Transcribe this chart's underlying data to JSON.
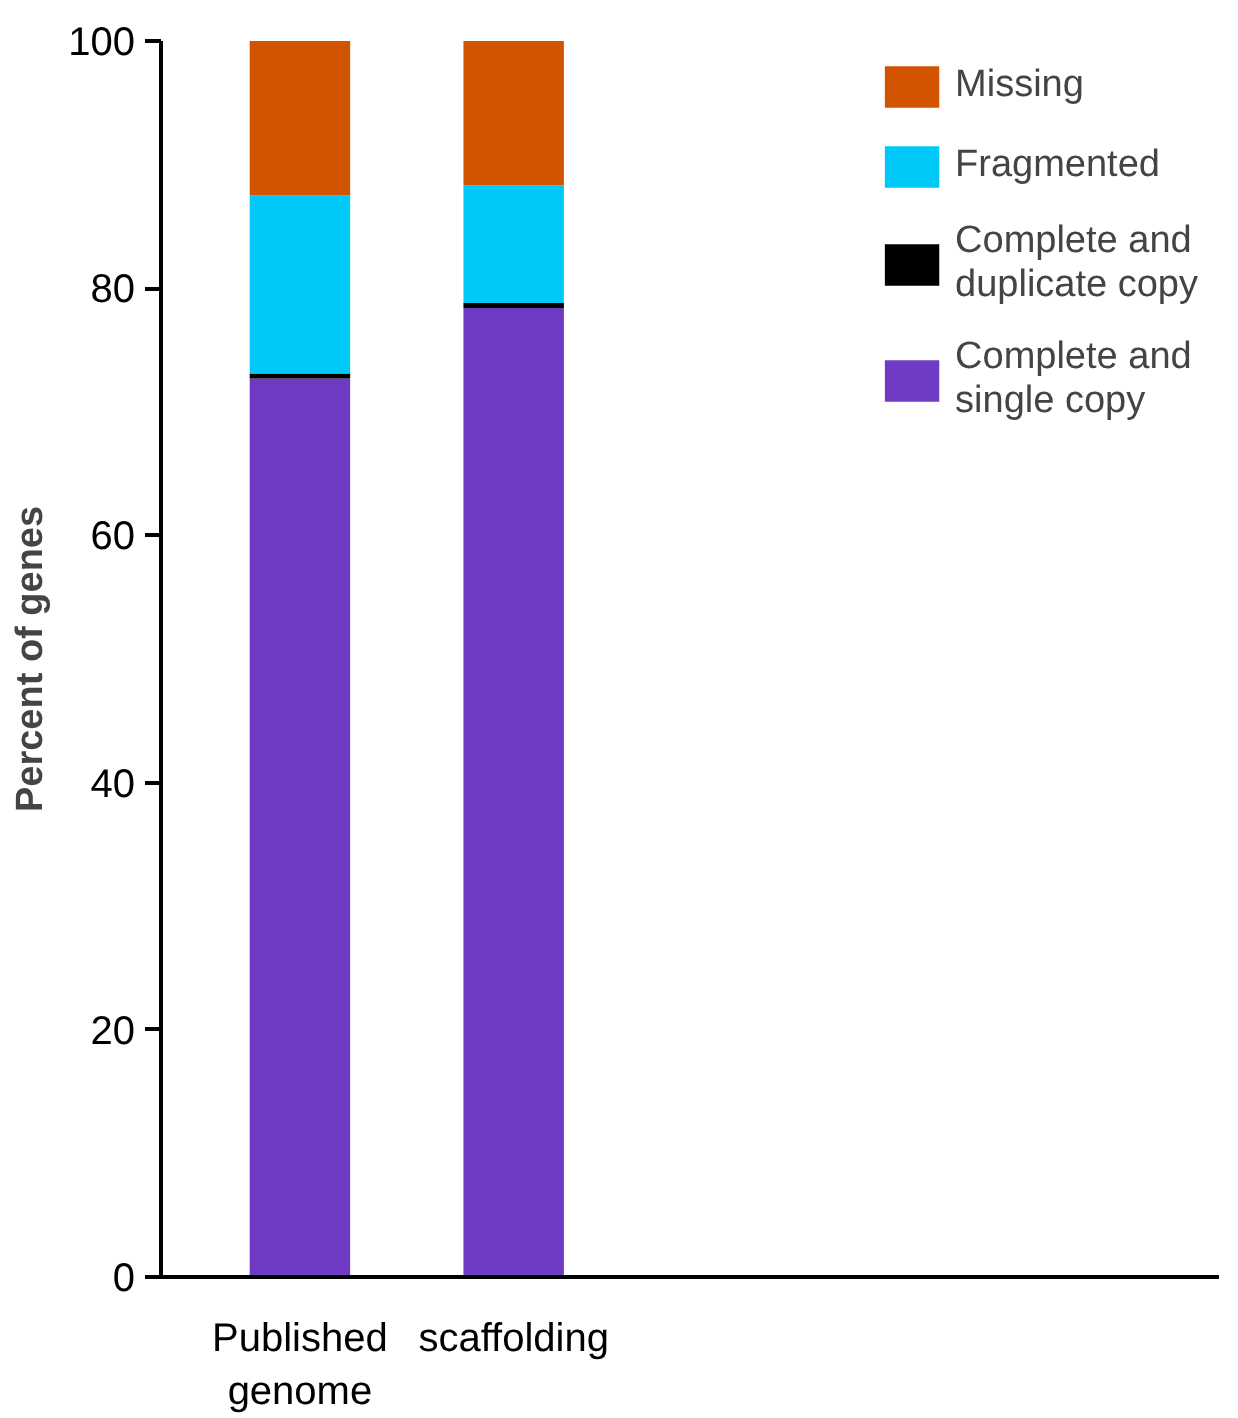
{
  "chart_data": {
    "type": "bar",
    "stacked": true,
    "ylabel": "Percent of genes",
    "categories": [
      "Published\ngenome",
      "scaffolding"
    ],
    "series": [
      {
        "name": "Complete and\nsingle copy",
        "color": "#6f3bc4",
        "values": [
          72.7,
          78.4
        ]
      },
      {
        "name": "Complete and\nduplicate copy",
        "color": "#000000",
        "values": [
          0.4,
          0.4
        ]
      },
      {
        "name": "Fragmented",
        "color": "#00c8f8",
        "values": [
          14.4,
          9.5
        ]
      },
      {
        "name": "Missing",
        "color": "#d35400",
        "values": [
          12.5,
          11.7
        ]
      }
    ],
    "ylim": [
      0,
      100
    ],
    "yticks": [
      0,
      20,
      40,
      60,
      80,
      100
    ],
    "grid": false,
    "legend": "top right"
  }
}
